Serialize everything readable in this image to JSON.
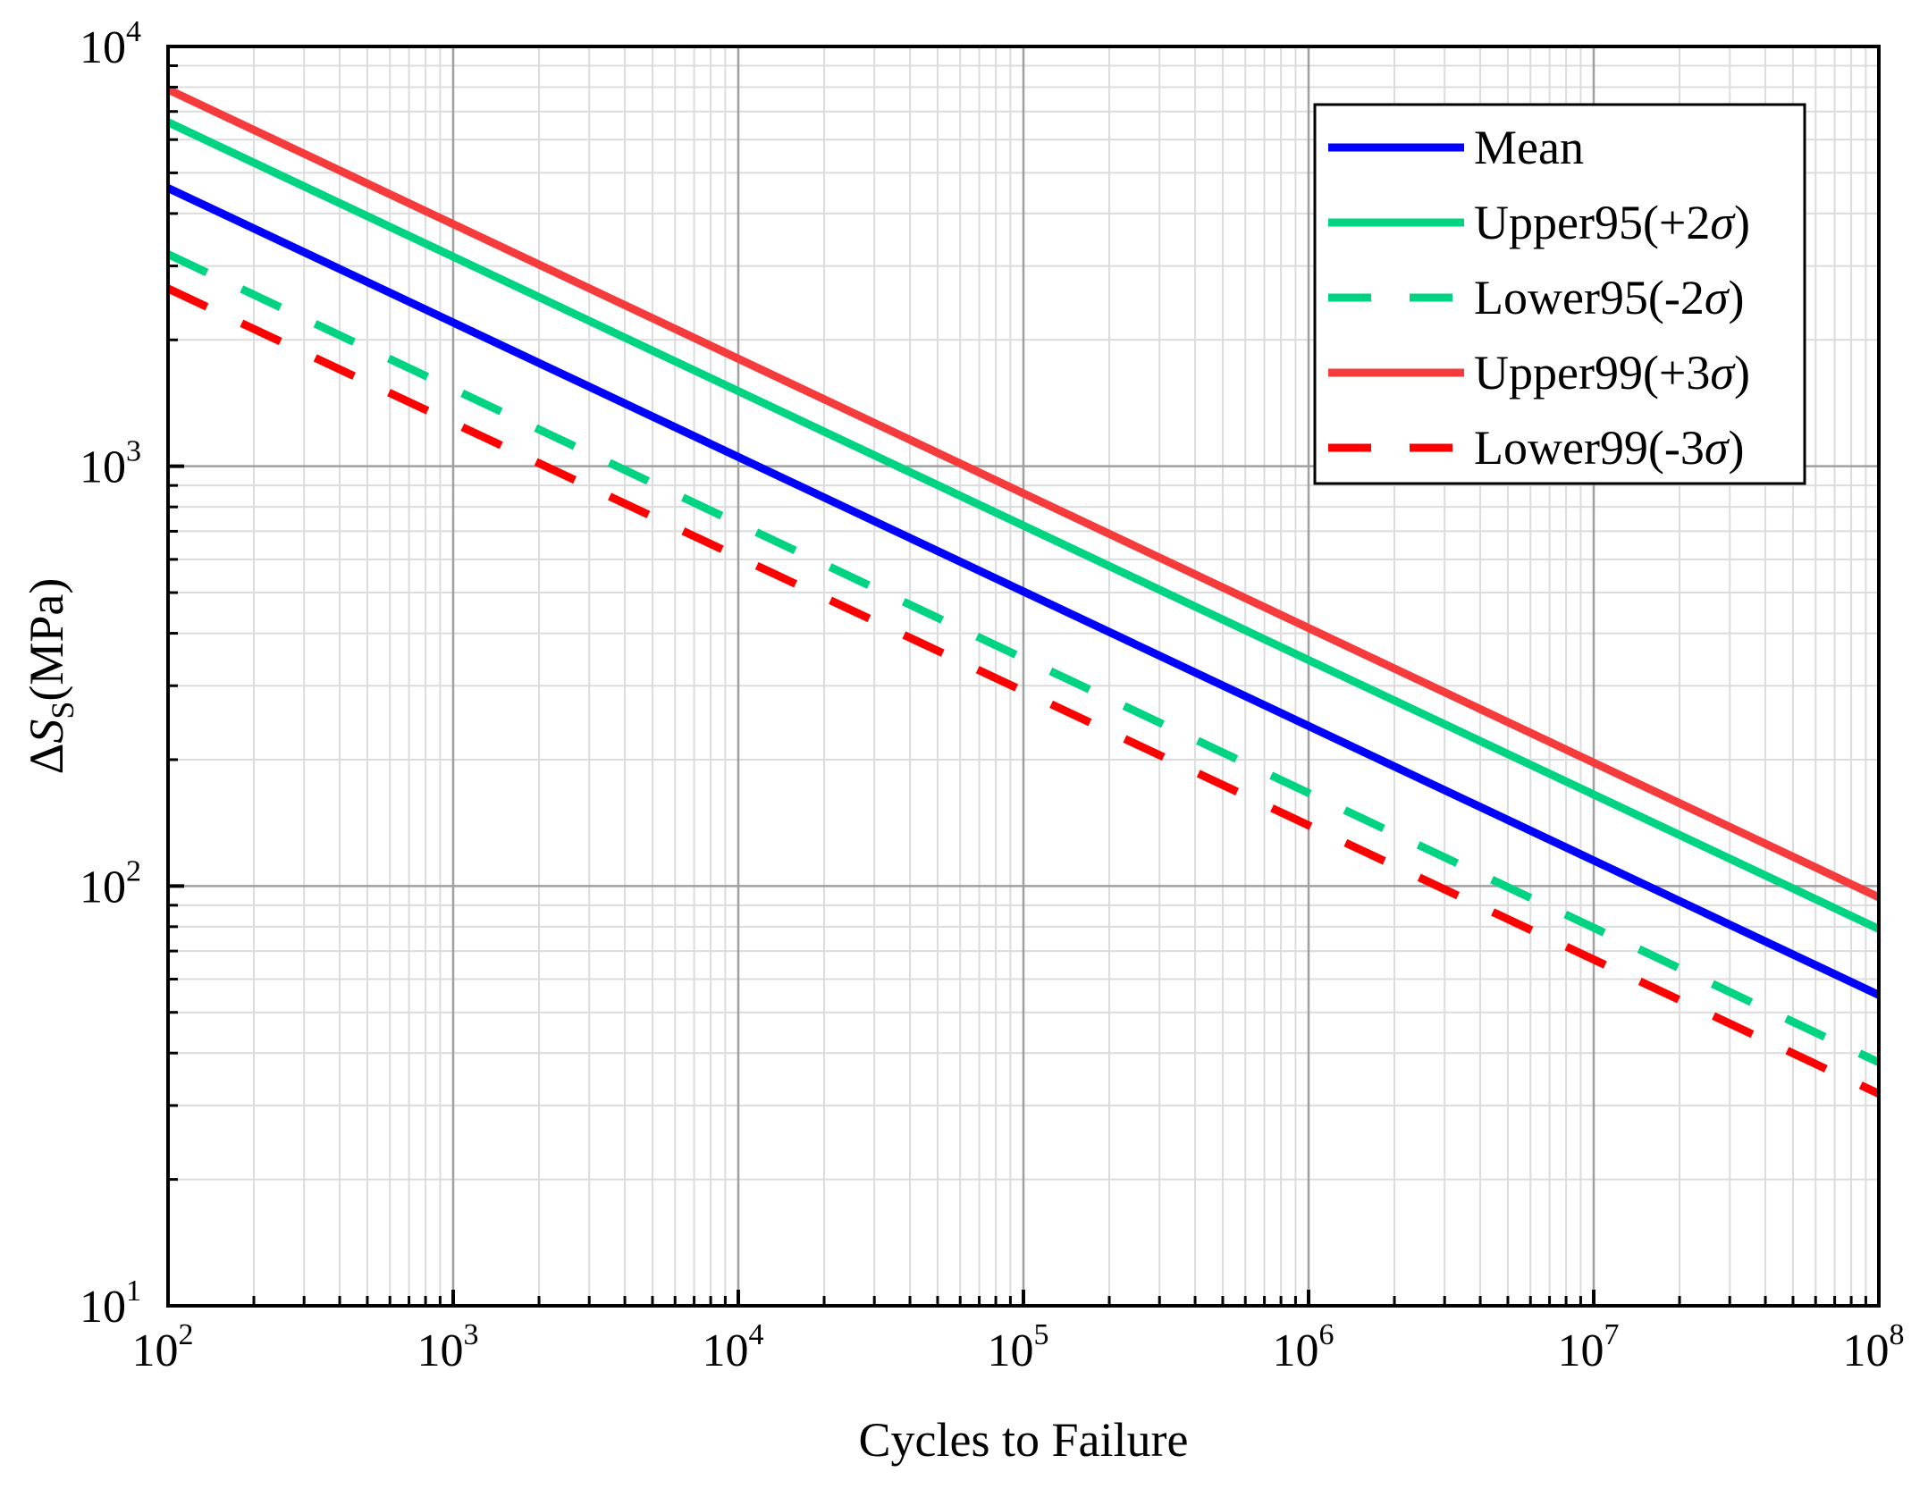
{
  "chart_data": {
    "type": "line",
    "xscale": "log",
    "yscale": "log",
    "xlim": [
      100,
      100000000
    ],
    "ylim": [
      10,
      10000
    ],
    "xlabel": "Cycles to Failure",
    "ylabel": {
      "symbol": "Δ",
      "var": "S",
      "subscript": "S",
      "unit": "(MPa)"
    },
    "x_ticks": [
      {
        "base": "10",
        "exp": "2",
        "value": 100
      },
      {
        "base": "10",
        "exp": "3",
        "value": 1000
      },
      {
        "base": "10",
        "exp": "4",
        "value": 10000
      },
      {
        "base": "10",
        "exp": "5",
        "value": 100000
      },
      {
        "base": "10",
        "exp": "6",
        "value": 1000000
      },
      {
        "base": "10",
        "exp": "7",
        "value": 10000000
      },
      {
        "base": "10",
        "exp": "8",
        "value": 100000000
      }
    ],
    "y_ticks": [
      {
        "base": "10",
        "exp": "1",
        "value": 10
      },
      {
        "base": "10",
        "exp": "2",
        "value": 100
      },
      {
        "base": "10",
        "exp": "3",
        "value": 1000
      },
      {
        "base": "10",
        "exp": "4",
        "value": 10000
      }
    ],
    "grid": true,
    "legend_position": "top-right",
    "series": [
      {
        "name": "Mean",
        "legend_suffix": "",
        "color": "#0000ff",
        "dash": false,
        "x": [
          100,
          100000000
        ],
        "y": [
          4600,
          55
        ]
      },
      {
        "name": "Upper95(+2",
        "legend_suffix": ")",
        "color": "#00d483",
        "dash": false,
        "x": [
          100,
          100000000
        ],
        "y": [
          6600,
          79
        ]
      },
      {
        "name": "Lower95(-2",
        "legend_suffix": ")",
        "color": "#00d483",
        "dash": true,
        "x": [
          100,
          100000000
        ],
        "y": [
          3200,
          38
        ]
      },
      {
        "name": "Upper99(+3",
        "legend_suffix": ")",
        "color": "#f53b3b",
        "dash": false,
        "x": [
          100,
          100000000
        ],
        "y": [
          7900,
          94
        ]
      },
      {
        "name": "Lower99(-3",
        "legend_suffix": ")",
        "color": "#ff0000",
        "dash": true,
        "x": [
          100,
          100000000
        ],
        "y": [
          2650,
          32
        ]
      }
    ],
    "legend_sigma": "σ"
  }
}
